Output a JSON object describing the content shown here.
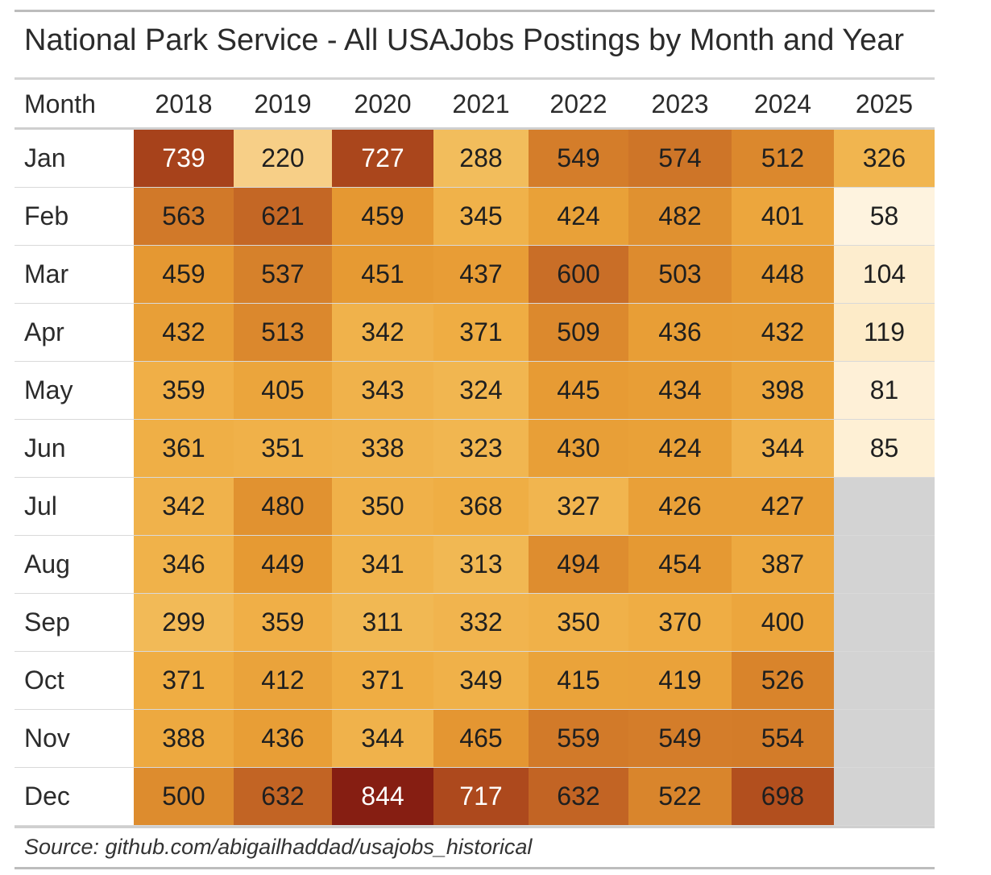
{
  "colors": {
    "missing": "#d3d3d3",
    "scale": [
      "#fef3df",
      "#fde9c2",
      "#f7d08a",
      "#f2bb58",
      "#efad43",
      "#e69a33",
      "#d8832b",
      "#c76b26",
      "#b5531f",
      "#a03a19",
      "#861e12"
    ]
  },
  "chart_data": {
    "type": "table",
    "title": "National Park Service - All USAJobs Postings by Month and Year",
    "source": "Source: github.com/abigailhaddad/usajobs_historical",
    "month_header": "Month",
    "years": [
      "2018",
      "2019",
      "2020",
      "2021",
      "2022",
      "2023",
      "2024",
      "2025"
    ],
    "months": [
      "Jan",
      "Feb",
      "Mar",
      "Apr",
      "May",
      "Jun",
      "Jul",
      "Aug",
      "Sep",
      "Oct",
      "Nov",
      "Dec"
    ],
    "values": [
      [
        739,
        220,
        727,
        288,
        549,
        574,
        512,
        326
      ],
      [
        563,
        621,
        459,
        345,
        424,
        482,
        401,
        58
      ],
      [
        459,
        537,
        451,
        437,
        600,
        503,
        448,
        104
      ],
      [
        432,
        513,
        342,
        371,
        509,
        436,
        432,
        119
      ],
      [
        359,
        405,
        343,
        324,
        445,
        434,
        398,
        81
      ],
      [
        361,
        351,
        338,
        323,
        430,
        424,
        344,
        85
      ],
      [
        342,
        480,
        350,
        368,
        327,
        426,
        427,
        null
      ],
      [
        346,
        449,
        341,
        313,
        494,
        454,
        387,
        null
      ],
      [
        299,
        359,
        311,
        332,
        350,
        370,
        400,
        null
      ],
      [
        371,
        412,
        371,
        349,
        415,
        419,
        526,
        null
      ],
      [
        388,
        436,
        344,
        465,
        559,
        549,
        554,
        null
      ],
      [
        500,
        632,
        844,
        717,
        632,
        522,
        698,
        null
      ]
    ],
    "value_range": [
      58,
      844
    ]
  }
}
